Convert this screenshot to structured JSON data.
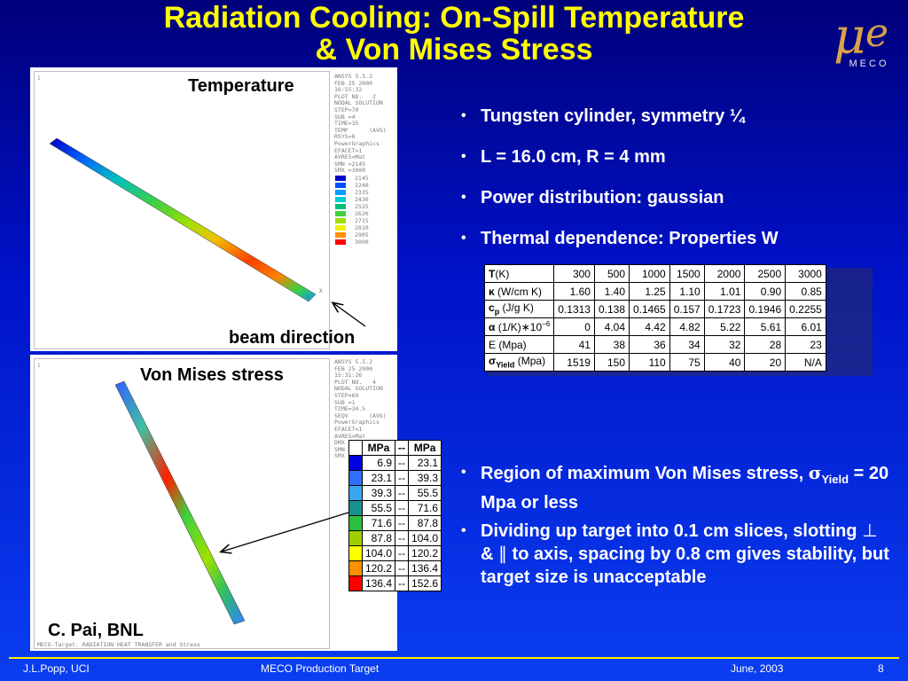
{
  "slide": {
    "title_line1": "Radiation Cooling: On-Spill Temperature",
    "title_line2": "& Von Mises Stress",
    "logo_text": "MECO"
  },
  "temperature_plot": {
    "label": "Temperature",
    "ansys_text": "ANSYS 5.5.2\nFEB 25 2000\n16:55:32\nPLOT NO.   2\nNODAL SOLUTION\nSTEP=70\nSUB =4\nTIME=35\nTEMP      (AVG)\nRSYS=0\nPowerGraphics\nEFACET=1\nAVRES=Mat\nSMN =2145\nSMX =3000",
    "legend": [
      "2145",
      "2240",
      "2335",
      "2430",
      "2525",
      "2620",
      "2715",
      "2810",
      "2905",
      "3000"
    ],
    "legend_colors": [
      "#0000c8",
      "#0050ff",
      "#00a0ff",
      "#00d0d0",
      "#00c080",
      "#40d040",
      "#a0e000",
      "#f0f000",
      "#ff9000",
      "#ff0000"
    ]
  },
  "beam_direction_label": "beam direction",
  "stress_plot": {
    "label": "Von Mises stress",
    "ansys_text": "ANSYS 5.5.2\nFEB 25 2000\n15:31:26\nPLOT NO.   4\nNODAL SOLUTION\nSTEP=69\nSUB =1\nTIME=34.5\nSEQV      (AVG)\nPowerGraphics\nEFACET=1\nAVRES=Mat\nDMX\nSMN\nSMX",
    "footer_text": "MECO-Target: RADIATION HEAT TRANSFER and Stress",
    "credit": "C. Pai, BNL"
  },
  "bullets_top": [
    "Tungsten cylinder, symmetry ¼",
    "L = 16.0 cm, R = 4 mm",
    "Power distribution: gaussian",
    "Thermal dependence: Properties W"
  ],
  "properties_table": {
    "rows": [
      {
        "label_main": "T",
        "label_rest": "(K)",
        "values": [
          "300",
          "500",
          "1000",
          "1500",
          "2000",
          "2500",
          "3000"
        ]
      },
      {
        "label_main": "κ",
        "label_rest": " (W/cm K)",
        "values": [
          "1.60",
          "1.40",
          "1.25",
          "1.10",
          "1.01",
          "0.90",
          "0.85"
        ]
      },
      {
        "label_main": "c",
        "label_sub": "p",
        "label_rest": " (J/g K)",
        "values": [
          "0.1313",
          "0.138",
          "0.1465",
          "0.157",
          "0.1723",
          "0.1946",
          "0.2255"
        ]
      },
      {
        "label_main": "α",
        "label_rest": " (1/K)∗10",
        "label_sup": "−6",
        "values": [
          "0",
          "4.04",
          "4.42",
          "4.82",
          "5.22",
          "5.61",
          "6.01"
        ]
      },
      {
        "label_main": "",
        "label_rest": "E (Mpa)",
        "values": [
          "41",
          "38",
          "36",
          "34",
          "32",
          "28",
          "23"
        ]
      },
      {
        "label_main": "σ",
        "label_sub": "Yield",
        "label_rest": " (Mpa)",
        "values": [
          "1519",
          "150",
          "110",
          "75",
          "40",
          "20",
          "N/A"
        ]
      }
    ]
  },
  "vm_table": {
    "headers": [
      "MPa",
      "--",
      "MPa"
    ],
    "rows": [
      {
        "color": "#0000e0",
        "from": "6.9",
        "to": "23.1"
      },
      {
        "color": "#2f6fff",
        "from": "23.1",
        "to": "39.3"
      },
      {
        "color": "#37a8f0",
        "from": "39.3",
        "to": "55.5"
      },
      {
        "color": "#1a9090",
        "from": "55.5",
        "to": "71.6"
      },
      {
        "color": "#2cc040",
        "from": "71.6",
        "to": "87.8"
      },
      {
        "color": "#9ed000",
        "from": "87.8",
        "to": "104.0"
      },
      {
        "color": "#ffff00",
        "from": "104.0",
        "to": "120.2"
      },
      {
        "color": "#ff9000",
        "from": "120.2",
        "to": "136.4"
      },
      {
        "color": "#ff0000",
        "from": "136.4",
        "to": "152.6"
      }
    ]
  },
  "bullets_bottom": {
    "b1_pre": "Region of maximum Von Mises stress, ",
    "b1_sym": "σ",
    "b1_sub": "Yield",
    "b1_post": " = 20 Mpa or less",
    "b2_pre": "Dividing up target into 0.1 cm slices, slotting ",
    "b2_perp": "⊥",
    "b2_mid": " & ",
    "b2_par": "∥",
    "b2_post": " to axis, spacing by 0.8 cm gives stability, but target size is unacceptable"
  },
  "footer": {
    "author": "J.L.Popp, UCI",
    "center": "MECO Production Target",
    "date": "June, 2003",
    "page": "8"
  }
}
